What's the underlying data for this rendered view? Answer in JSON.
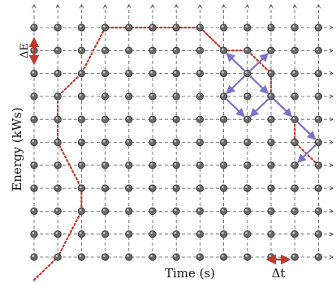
{
  "labels": {
    "y_axis": "Energy (kWs)",
    "x_axis": "Time (s)",
    "delta_e": "ΔE",
    "delta_t": "Δt"
  },
  "grid": {
    "columns": 13,
    "rows": 11
  },
  "colors": {
    "red_path": "#c0392b",
    "purple_arrows": "#7d73c9",
    "red_markers": "#c0392b",
    "nodes": "#6a6a6a"
  },
  "paths": {
    "red_dotted": [
      [
        0,
        11
      ],
      [
        1,
        10
      ],
      [
        2,
        8
      ],
      [
        2,
        7
      ],
      [
        1,
        5
      ],
      [
        1,
        3
      ],
      [
        2,
        2
      ],
      [
        3,
        0
      ],
      [
        4,
        0
      ],
      [
        5,
        0
      ],
      [
        6,
        0
      ],
      [
        7,
        0
      ],
      [
        8,
        1
      ],
      [
        9,
        1
      ],
      [
        10,
        2
      ],
      [
        10,
        3
      ],
      [
        11,
        4
      ],
      [
        11,
        5
      ],
      [
        12,
        6
      ]
    ],
    "black_solid": [
      [
        7,
        0
      ],
      [
        8,
        1
      ]
    ]
  },
  "purple_arrows": [
    [
      [
        9,
        2
      ],
      [
        8,
        3
      ]
    ],
    [
      [
        9,
        2
      ],
      [
        10,
        3
      ]
    ],
    [
      [
        9,
        2
      ],
      [
        8,
        1
      ]
    ],
    [
      [
        9,
        2
      ],
      [
        10,
        1
      ]
    ],
    [
      [
        8,
        3
      ],
      [
        9,
        4
      ]
    ],
    [
      [
        10,
        3
      ],
      [
        9,
        4
      ]
    ],
    [
      [
        10,
        3
      ],
      [
        11,
        4
      ]
    ],
    [
      [
        11,
        4
      ],
      [
        12,
        5
      ]
    ],
    [
      [
        12,
        5
      ],
      [
        11,
        6
      ]
    ]
  ]
}
